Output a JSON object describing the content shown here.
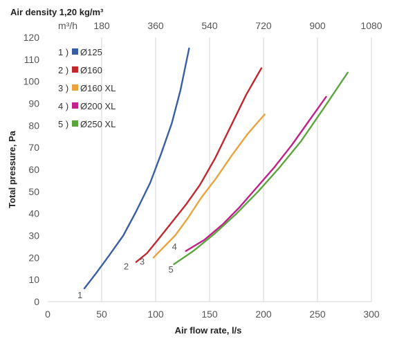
{
  "chart_data": {
    "type": "line",
    "top_title": "Air density 1,20 kg/m³",
    "top_axis_unit": "m³/h",
    "top_ticks": [
      180,
      360,
      540,
      720,
      900,
      1080
    ],
    "xlabel": "Air flow rate, l/s",
    "ylabel": "Total pressure, Pa",
    "xlim": [
      0,
      300
    ],
    "ylim": [
      0,
      120
    ],
    "x_ticks": [
      0,
      50,
      100,
      150,
      200,
      250,
      300
    ],
    "y_ticks": [
      0,
      10,
      20,
      30,
      40,
      50,
      60,
      70,
      80,
      90,
      100,
      110,
      120
    ],
    "grid": "vertical",
    "legend_position": "top-left",
    "series": [
      {
        "name": "Ø125",
        "number": "1",
        "color": "#3a5ea6",
        "label": "1",
        "x": [
          34,
          45,
          57,
          70,
          82,
          95,
          105,
          115,
          123,
          131
        ],
        "y": [
          6,
          13,
          21,
          30,
          41,
          54,
          67,
          81,
          96,
          115
        ]
      },
      {
        "name": "Ø160",
        "number": "2",
        "color": "#c0282d",
        "label": "2",
        "x": [
          82,
          92,
          102,
          115,
          128,
          141,
          155,
          170,
          184,
          198
        ],
        "y": [
          18,
          22,
          28,
          36,
          44,
          53,
          65,
          80,
          94,
          106
        ]
      },
      {
        "name": "Ø160 XL",
        "number": "3",
        "color": "#e8a33d",
        "label": "3",
        "x": [
          98,
          108,
          118,
          130,
          142,
          156,
          170,
          185,
          201
        ],
        "y": [
          20,
          25,
          30,
          38,
          47,
          56,
          66,
          76,
          85
        ]
      },
      {
        "name": "Ø200 XL",
        "number": "4",
        "color": "#c0218a",
        "label": "4",
        "x": [
          128,
          145,
          162,
          178,
          194,
          210,
          226,
          242,
          258
        ],
        "y": [
          23,
          28,
          35,
          43,
          52,
          61,
          71,
          82,
          93
        ]
      },
      {
        "name": "Ø250 XL",
        "number": "5",
        "color": "#5aa63c",
        "label": "5",
        "x": [
          117,
          135,
          155,
          175,
          195,
          215,
          235,
          256,
          278
        ],
        "y": [
          17,
          23,
          31,
          40,
          50,
          61,
          73,
          88,
          104
        ]
      }
    ]
  }
}
